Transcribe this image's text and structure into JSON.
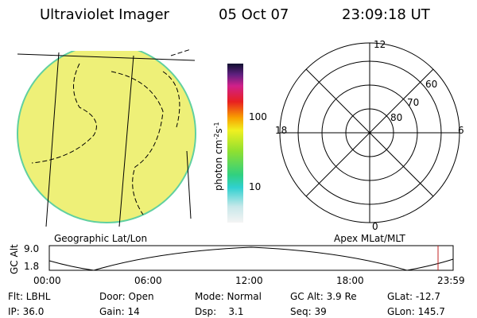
{
  "header": {
    "instrument": "Ultraviolet Imager",
    "date": "05 Oct 07",
    "time": "23:09:18 UT"
  },
  "colorbar": {
    "label_main": "photon cm",
    "label_exp1": "-2",
    "label_s": "s",
    "label_exp2": "-1",
    "tick_high": "100",
    "tick_low": "10"
  },
  "polar": {
    "labels": {
      "top": "12",
      "left": "18",
      "right": "6",
      "bottom": "0",
      "r60": "60",
      "r70": "70",
      "r80": "80"
    }
  },
  "captions": {
    "left": "Geographic Lat/Lon",
    "right": "Apex MLat/MLT"
  },
  "altitude_plot": {
    "ylabel": "GC Alt",
    "ytick_high": "9.0",
    "ytick_low": "1.8",
    "xticks": [
      "00:00",
      "06:00",
      "12:00",
      "18:00",
      "23:59"
    ]
  },
  "info": {
    "row1": [
      "Flt: LBHL",
      "Door: Open",
      "Mode: Normal",
      "GC Alt: 3.9 Re",
      "GLat: -12.7"
    ],
    "row2": [
      "IP: 36.0",
      "Gain: 14",
      "Dsp:    3.1",
      "Seq: 39",
      "GLon: 145.7"
    ]
  }
}
